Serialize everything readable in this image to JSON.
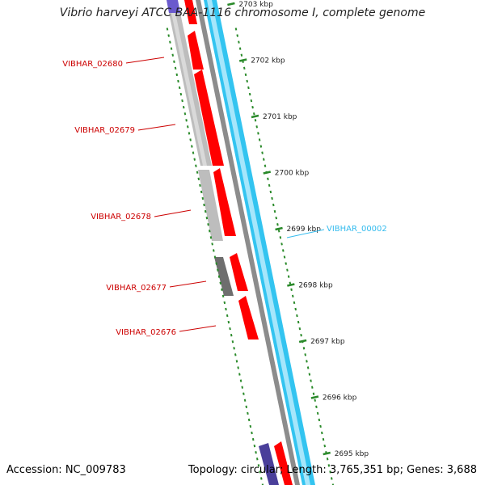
{
  "map": {
    "title": "Vibrio harveyi ATCC BAA-1116 chromosome I, complete genome",
    "accession": "Accession: NC_009783",
    "summary": "Topology: circular; Length: 3,765,351 bp; Genes: 3,688",
    "ticks": [
      "2703 kbp",
      "2702 kbp",
      "2701 kbp",
      "2700 kbp",
      "2699 kbp",
      "2698 kbp",
      "2697 kbp",
      "2696 kbp",
      "2695 kbp"
    ],
    "genes_left": [
      "VIBHAR_02680",
      "VIBHAR_02679",
      "VIBHAR_02678",
      "VIBHAR_02677",
      "VIBHAR_02676"
    ],
    "genes_right": [
      "VIBHAR_00002"
    ],
    "colors": {
      "label_red": "#cc0000",
      "label_cyan": "#33bbee",
      "forward_red": "#ff0000",
      "cyan_band": "#33c4f0",
      "grey_gene": "#b8b8b8",
      "dark_gene": "#707070",
      "purple_gene": "#6a5acd",
      "tick_green": "#2a8a2a"
    }
  }
}
